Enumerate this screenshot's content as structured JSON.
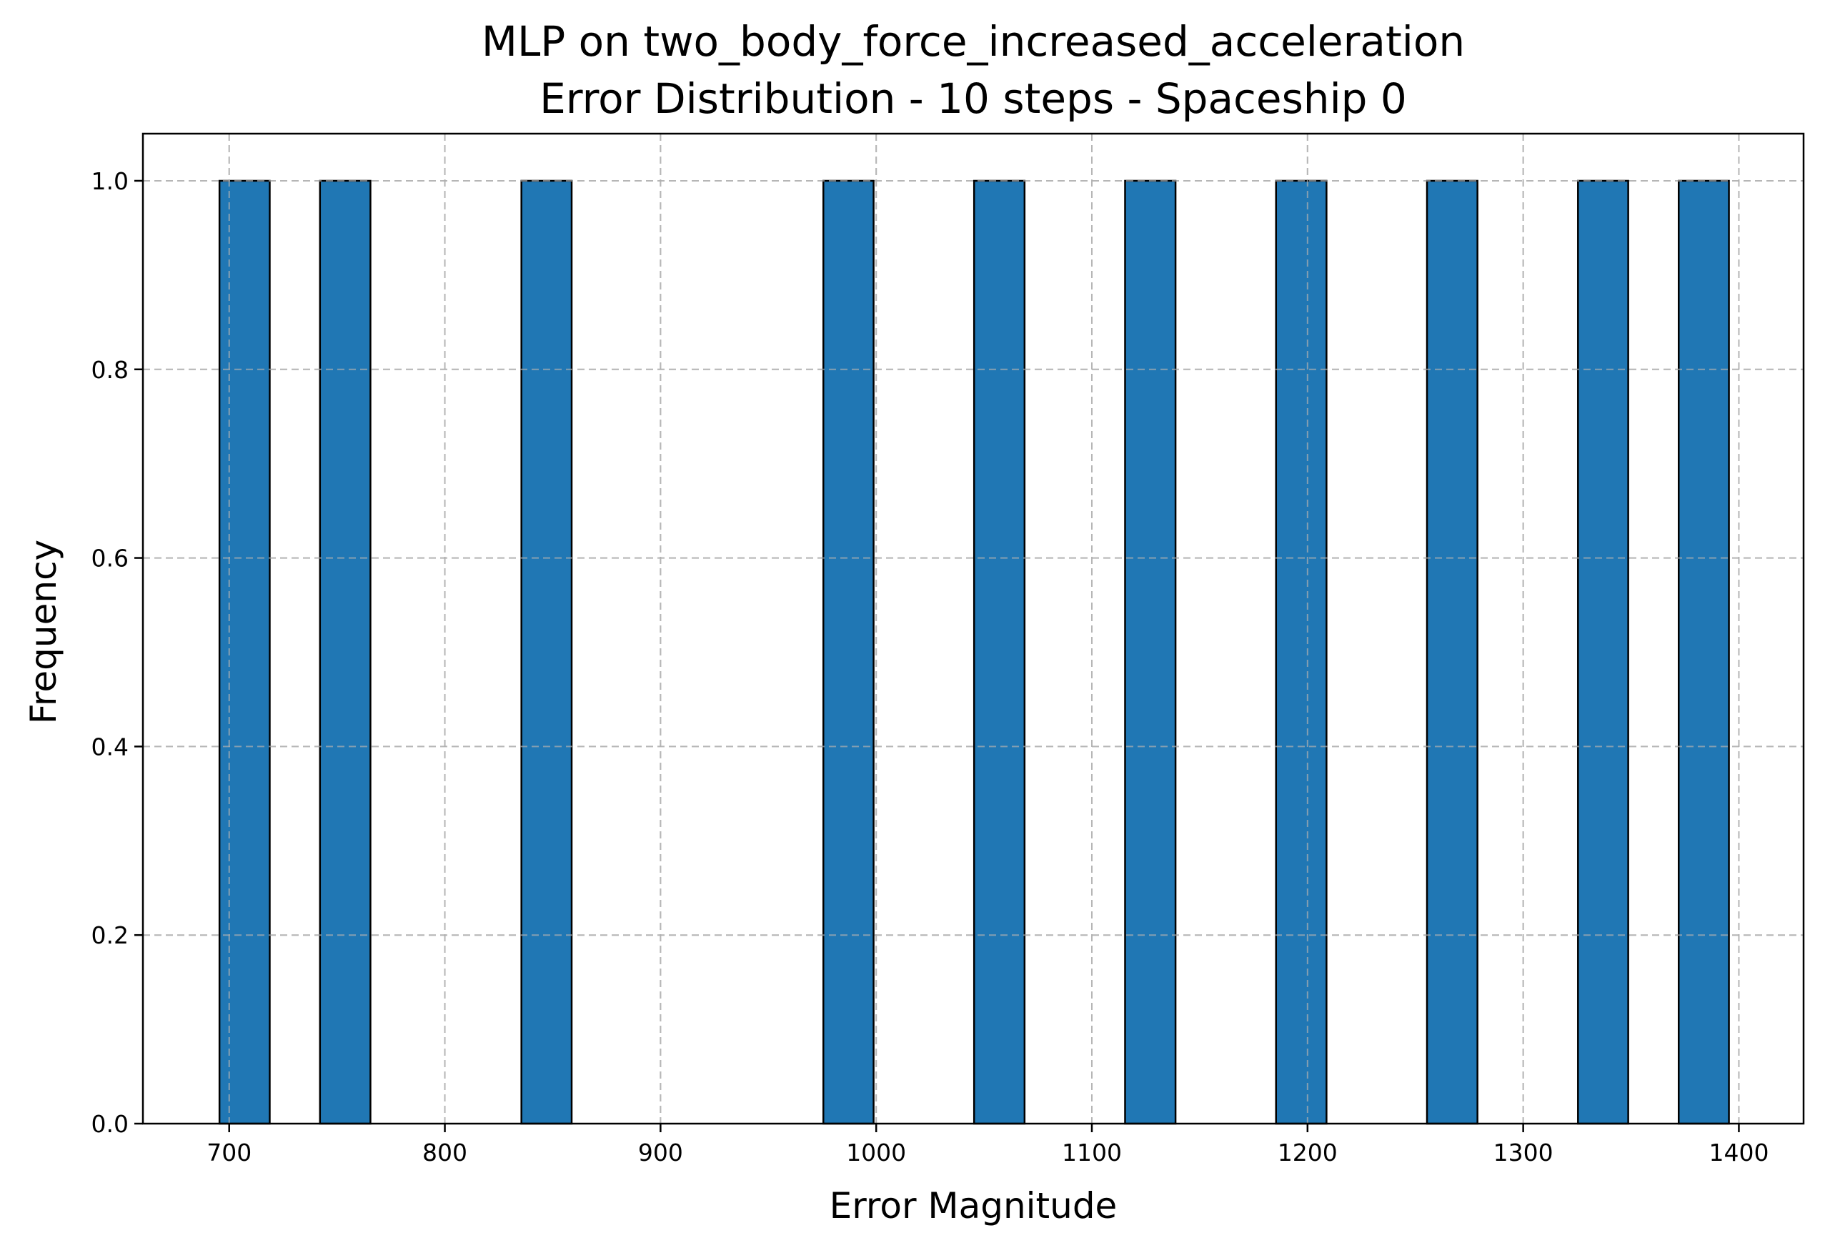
{
  "chart_data": {
    "type": "bar",
    "title_line1": "MLP on two_body_force_increased_acceleration",
    "title_line2": "Error Distribution - 10 steps - Spaceship 0",
    "xlabel": "Error Magnitude",
    "ylabel": "Frequency",
    "xlim": [
      660,
      1430
    ],
    "ylim": [
      0,
      1.05
    ],
    "x_ticks": [
      700,
      800,
      900,
      1000,
      1100,
      1200,
      1300,
      1400
    ],
    "x_tick_labels": [
      "700",
      "800",
      "900",
      "1000",
      "1100",
      "1200",
      "1300",
      "1400"
    ],
    "y_ticks": [
      0.0,
      0.2,
      0.4,
      0.6,
      0.8,
      1.0
    ],
    "y_tick_labels": [
      "0.0",
      "0.2",
      "0.4",
      "0.6",
      "0.8",
      "1.0"
    ],
    "grid": true,
    "bar_color": "#2077b4",
    "edge_color": "#000000",
    "bins": [
      {
        "x0": 695.5,
        "x1": 718.8,
        "value": 1
      },
      {
        "x0": 742.1,
        "x1": 765.5,
        "value": 1
      },
      {
        "x0": 835.5,
        "x1": 858.8,
        "value": 1
      },
      {
        "x0": 975.5,
        "x1": 998.8,
        "value": 1
      },
      {
        "x0": 1045.4,
        "x1": 1068.8,
        "value": 1
      },
      {
        "x0": 1115.4,
        "x1": 1138.8,
        "value": 1
      },
      {
        "x0": 1185.4,
        "x1": 1208.8,
        "value": 1
      },
      {
        "x0": 1255.4,
        "x1": 1278.8,
        "value": 1
      },
      {
        "x0": 1325.4,
        "x1": 1348.7,
        "value": 1
      },
      {
        "x0": 1372.1,
        "x1": 1395.4,
        "value": 1
      }
    ]
  }
}
